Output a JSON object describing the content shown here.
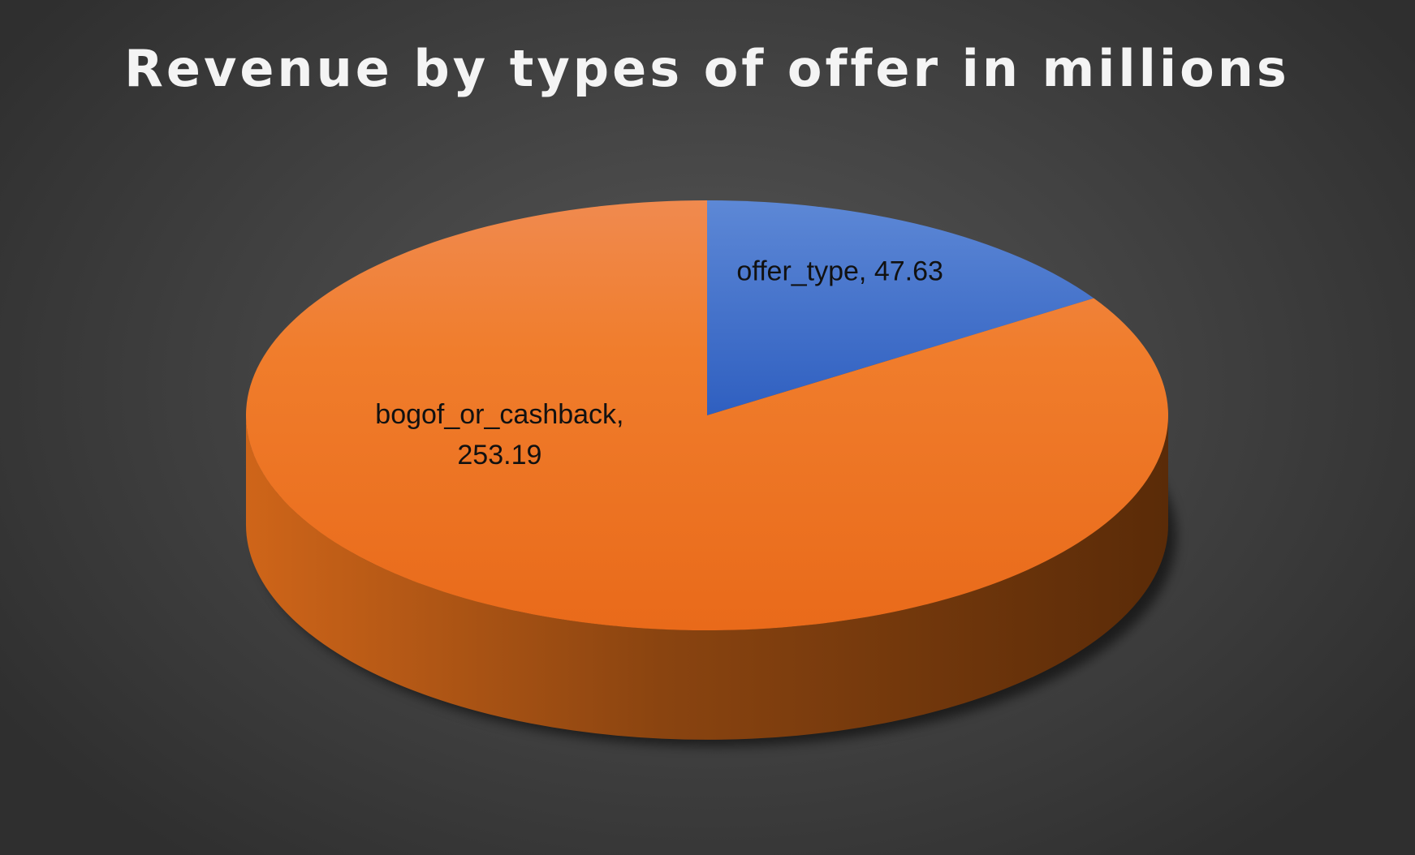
{
  "chart_data": {
    "type": "pie",
    "title": "Revenue by types of offer in millions",
    "slices": [
      {
        "category": "offer_type",
        "value": 47.63,
        "color": "#4472C4",
        "label_lines": [
          "offer_type, 47.63"
        ]
      },
      {
        "category": "bogof_or_cashback",
        "value": 253.19,
        "color": "#ED7D31",
        "label_lines": [
          "bogof_or_cashback,",
          "253.19"
        ]
      }
    ],
    "style": "3d",
    "legend": "none"
  }
}
